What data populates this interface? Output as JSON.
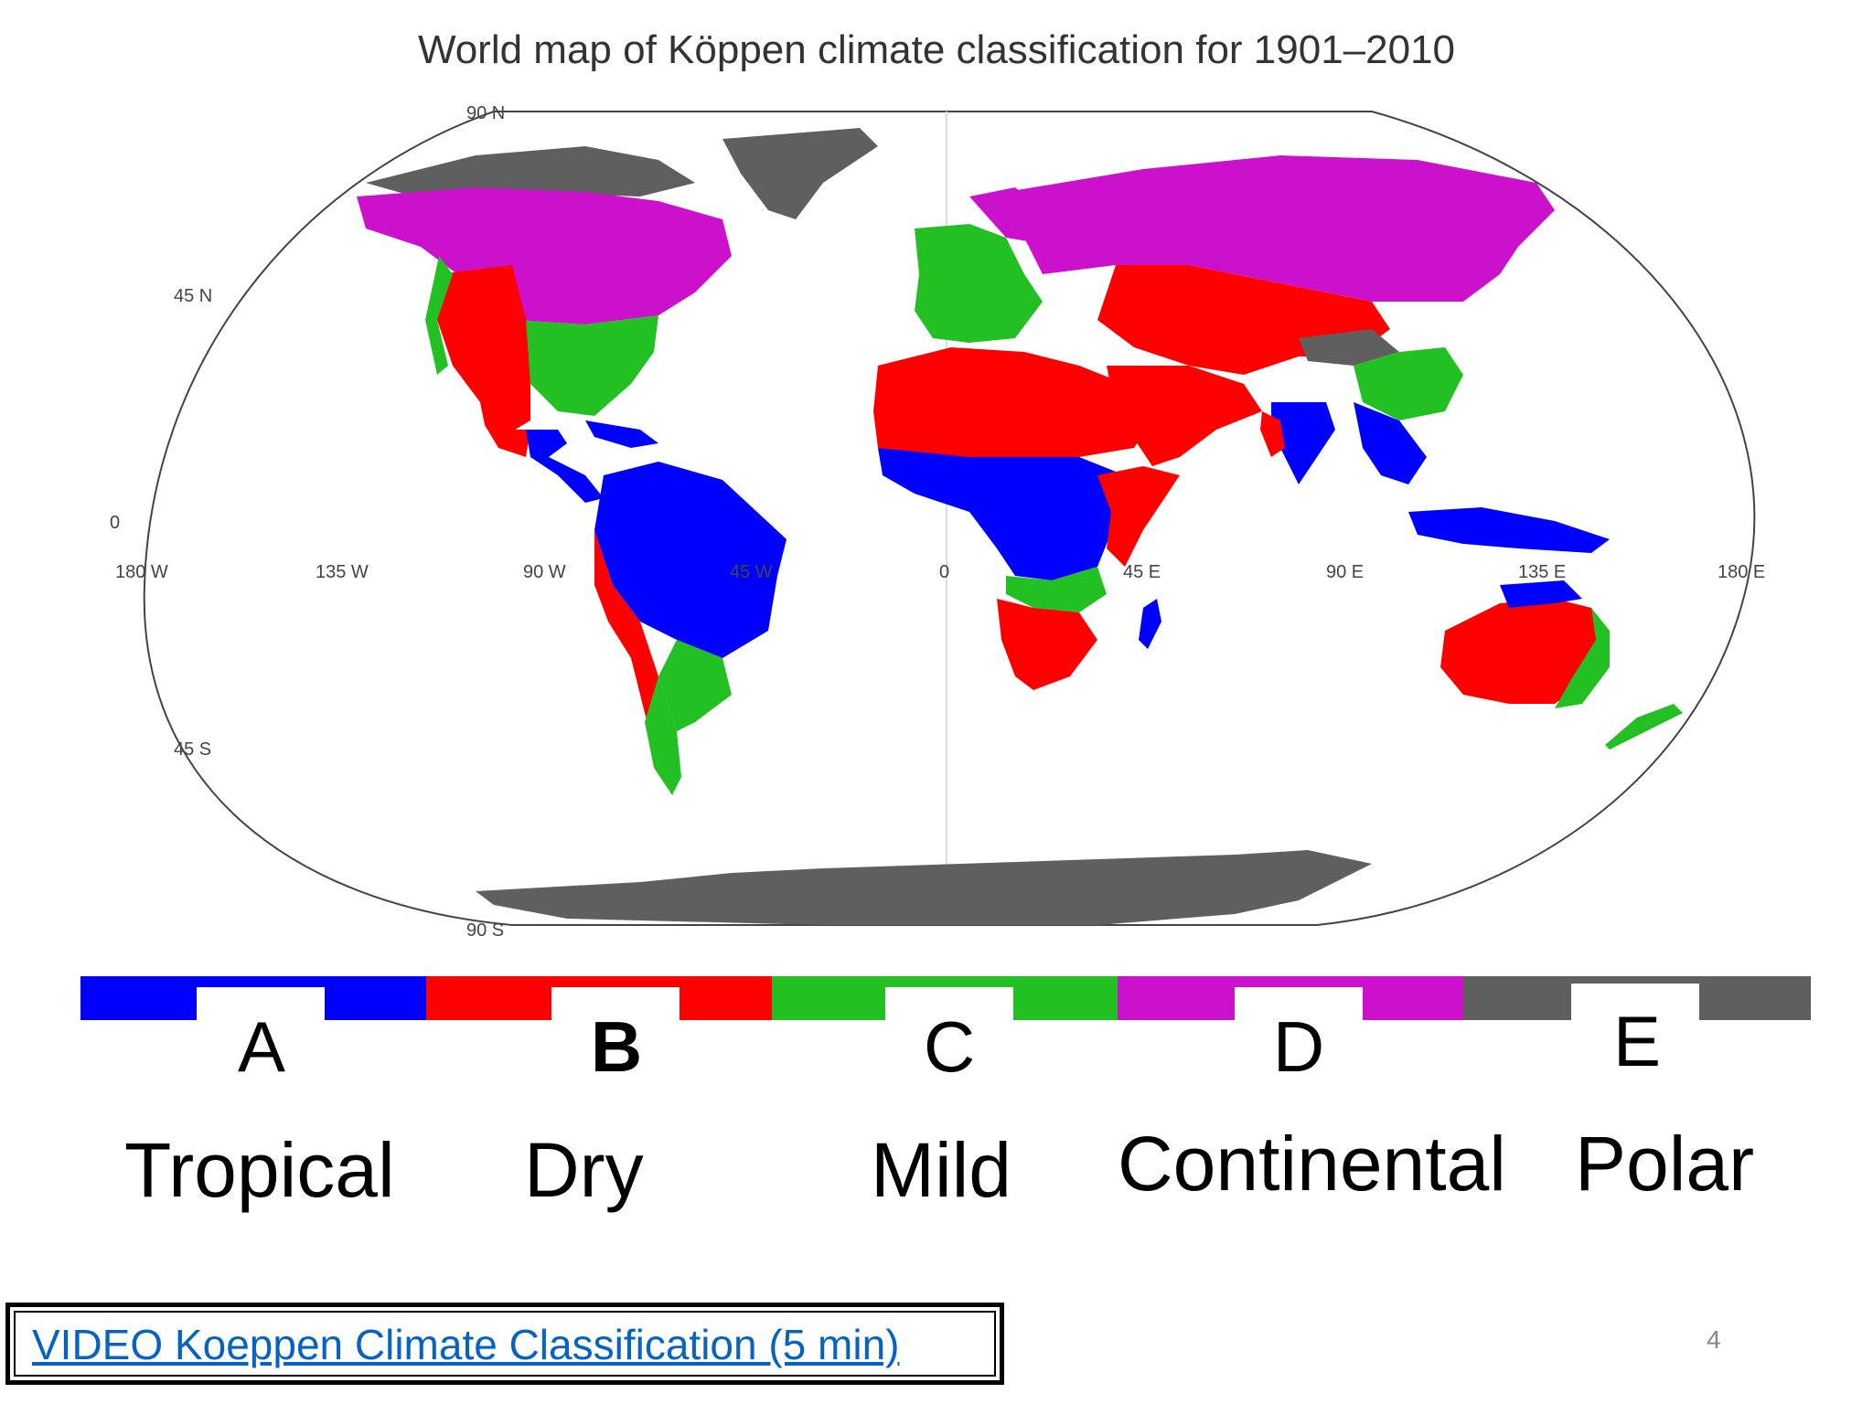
{
  "title": "World map of Köppen climate classification for 1901–2010",
  "map": {
    "lat_labels": [
      "90 N",
      "45 N",
      "0",
      "45 S",
      "90 S"
    ],
    "lon_labels": [
      "180 W",
      "135 W",
      "90 W",
      "45 W",
      "0",
      "45 E",
      "90 E",
      "135 E",
      "180 E"
    ],
    "colors": {
      "tropical": "#0000ff",
      "dry": "#ff0000",
      "mild": "#22c022",
      "continental": "#cc11cc",
      "polar": "#5f5f5f"
    }
  },
  "legend": [
    {
      "letter": "A",
      "name": "Tropical",
      "color": "#0000ff",
      "bold": false
    },
    {
      "letter": "B",
      "name": "Dry",
      "color": "#ff0000",
      "bold": true
    },
    {
      "letter": "C",
      "name": "Mild",
      "color": "#22c022",
      "bold": false
    },
    {
      "letter": "D",
      "name": "Continental",
      "color": "#cc11cc",
      "bold": false
    },
    {
      "letter": "E",
      "name": "Polar",
      "color": "#5f5f5f",
      "bold": false
    }
  ],
  "video_link": "VIDEO Koeppen Climate Classification (5 min)",
  "page_number": "4"
}
